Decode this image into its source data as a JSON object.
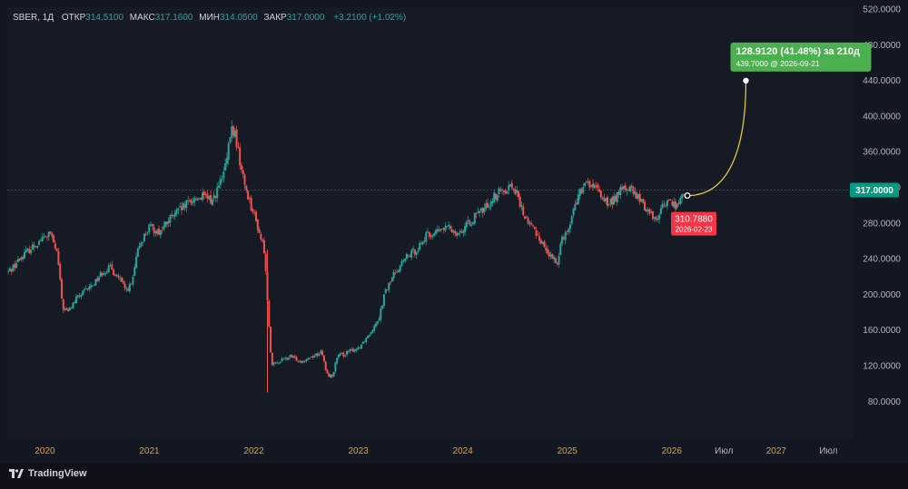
{
  "legend": {
    "symbol": "SBER, 1Д",
    "open_label": "ОТКР",
    "open": "314.5100",
    "high_label": "МАКС",
    "high": "317.1600",
    "low_label": "МИН",
    "low": "314.0500",
    "close_label": "ЗАКР",
    "close": "317.0000",
    "change": "+3.2100 (+1.02%)"
  },
  "price_badge": "317.0000",
  "projection": {
    "start_price_label": "310.7880",
    "start_date_label": "2026-02-23",
    "result_label": "128.9120 (41.48%) за 210д",
    "target_label": "439.7000 @ 2026-09-21"
  },
  "brand": {
    "name": "TradingView"
  },
  "colors": {
    "up": "#26a69a",
    "down": "#ef5350",
    "projection_line": "#f0d43a",
    "target_badge": "#4caf50",
    "start_badge": "#f23645",
    "price_badge": "#089981",
    "axis_text": "#b2b5be",
    "year_label": "#e0a23b"
  },
  "chart_data": {
    "type": "candlestick",
    "symbol": "SBER",
    "interval": "1Д",
    "ylim": [
      60,
      520
    ],
    "y_ticks": [
      "80.0000",
      "120.0000",
      "160.0000",
      "200.0000",
      "240.0000",
      "280.0000",
      "320.0000",
      "360.0000",
      "400.0000",
      "440.0000",
      "480.0000",
      "520.0000"
    ],
    "x_ticks": [
      {
        "label": "2020",
        "year": 2020.0,
        "style": "year"
      },
      {
        "label": "2021",
        "year": 2021.0,
        "style": "year"
      },
      {
        "label": "2022",
        "year": 2022.0,
        "style": "year"
      },
      {
        "label": "2023",
        "year": 2023.0,
        "style": "year"
      },
      {
        "label": "2024",
        "year": 2024.0,
        "style": "year"
      },
      {
        "label": "2025",
        "year": 2025.0,
        "style": "year"
      },
      {
        "label": "2026",
        "year": 2026.0,
        "style": "year"
      },
      {
        "label": "Июл",
        "year": 2026.5,
        "style": "month"
      },
      {
        "label": "2027",
        "year": 2027.0,
        "style": "year"
      },
      {
        "label": "Июл",
        "year": 2027.5,
        "style": "month"
      }
    ],
    "x_range": [
      2019.64,
      2027.74
    ],
    "price_path": [
      [
        2019.65,
        225
      ],
      [
        2019.8,
        245
      ],
      [
        2019.97,
        262
      ],
      [
        2020.05,
        268
      ],
      [
        2020.12,
        245
      ],
      [
        2020.17,
        185
      ],
      [
        2020.22,
        180
      ],
      [
        2020.3,
        195
      ],
      [
        2020.45,
        210
      ],
      [
        2020.55,
        225
      ],
      [
        2020.62,
        230
      ],
      [
        2020.7,
        220
      ],
      [
        2020.77,
        205
      ],
      [
        2020.83,
        210
      ],
      [
        2020.9,
        255
      ],
      [
        2021.0,
        275
      ],
      [
        2021.1,
        270
      ],
      [
        2021.2,
        285
      ],
      [
        2021.3,
        295
      ],
      [
        2021.4,
        305
      ],
      [
        2021.5,
        310
      ],
      [
        2021.6,
        305
      ],
      [
        2021.7,
        330
      ],
      [
        2021.75,
        355
      ],
      [
        2021.78,
        385
      ],
      [
        2021.82,
        380
      ],
      [
        2021.88,
        340
      ],
      [
        2021.92,
        320
      ],
      [
        2022.0,
        290
      ],
      [
        2022.05,
        270
      ],
      [
        2022.1,
        250
      ],
      [
        2022.13,
        195
      ],
      [
        2022.17,
        120
      ],
      [
        2022.25,
        125
      ],
      [
        2022.35,
        130
      ],
      [
        2022.45,
        125
      ],
      [
        2022.55,
        130
      ],
      [
        2022.65,
        135
      ],
      [
        2022.7,
        110
      ],
      [
        2022.75,
        108
      ],
      [
        2022.8,
        130
      ],
      [
        2022.9,
        135
      ],
      [
        2023.0,
        140
      ],
      [
        2023.1,
        155
      ],
      [
        2023.2,
        175
      ],
      [
        2023.25,
        200
      ],
      [
        2023.35,
        225
      ],
      [
        2023.45,
        240
      ],
      [
        2023.55,
        250
      ],
      [
        2023.65,
        265
      ],
      [
        2023.75,
        270
      ],
      [
        2023.85,
        275
      ],
      [
        2023.95,
        270
      ],
      [
        2024.0,
        272
      ],
      [
        2024.1,
        285
      ],
      [
        2024.2,
        295
      ],
      [
        2024.3,
        310
      ],
      [
        2024.4,
        318
      ],
      [
        2024.45,
        322
      ],
      [
        2024.5,
        318
      ],
      [
        2024.55,
        300
      ],
      [
        2024.6,
        285
      ],
      [
        2024.7,
        270
      ],
      [
        2024.8,
        250
      ],
      [
        2024.85,
        240
      ],
      [
        2024.9,
        235
      ],
      [
        2024.95,
        265
      ],
      [
        2025.0,
        270
      ],
      [
        2025.05,
        290
      ],
      [
        2025.1,
        310
      ],
      [
        2025.15,
        318
      ],
      [
        2025.2,
        325
      ],
      [
        2025.3,
        315
      ],
      [
        2025.4,
        300
      ],
      [
        2025.5,
        315
      ],
      [
        2025.55,
        320
      ],
      [
        2025.6,
        318
      ],
      [
        2025.7,
        305
      ],
      [
        2025.8,
        290
      ],
      [
        2025.85,
        285
      ],
      [
        2025.9,
        295
      ],
      [
        2025.95,
        305
      ],
      [
        2026.05,
        300
      ],
      [
        2026.12,
        312
      ],
      [
        2026.15,
        317
      ]
    ],
    "projection": {
      "from": {
        "year": 2026.15,
        "price": 310.788,
        "date": "2026-02-23"
      },
      "to": {
        "year": 2026.71,
        "price": 439.7,
        "date": "2026-09-21"
      },
      "change": 128.912,
      "change_percent": 41.48,
      "days": 210
    },
    "last_price": 317.0,
    "grid": false
  }
}
